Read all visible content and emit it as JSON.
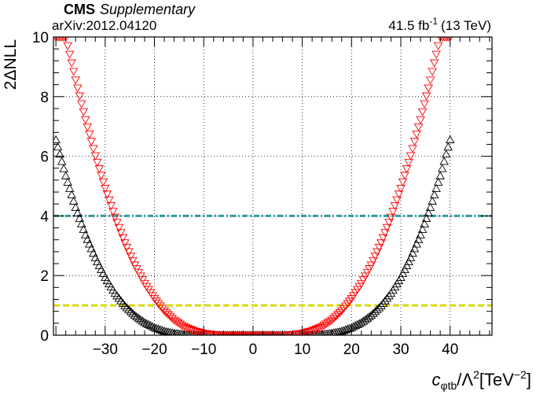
{
  "header": {
    "experiment": "CMS",
    "tag": "Supplementary",
    "arxiv": "arXiv:2012.04120",
    "lumi_value": "41.5 fb",
    "lumi_exp": "-1",
    "energy": "(13 TeV)"
  },
  "chart_data": {
    "type": "scatter",
    "ylabel": "2ΔNLL",
    "xlabel": {
      "base": "c",
      "sub": "φtb",
      "middle": "/Λ",
      "sup": "2",
      "unit_open": "[TeV",
      "unit_sup": "−2",
      "unit_close": "]"
    },
    "xlim": [
      -40.5,
      48.5
    ],
    "ylim": [
      0,
      10
    ],
    "xticks": [
      -30,
      -20,
      -10,
      0,
      10,
      20,
      30,
      40
    ],
    "xtick_labels": [
      "−30",
      "−20",
      "−10",
      "0",
      "10",
      "20",
      "30",
      "40"
    ],
    "yticks": [
      0,
      2,
      4,
      6,
      8,
      10
    ],
    "ytick_labels": [
      "0",
      "2",
      "4",
      "6",
      "8",
      "10"
    ],
    "grid": true,
    "reference_lines": [
      {
        "y": 4,
        "color": "#2f9c9c",
        "style": "dash-dot"
      },
      {
        "y": 1,
        "color": "#d9d900",
        "style": "dashed"
      }
    ],
    "series": [
      {
        "marker": "triangle-up-open",
        "color": "#000000",
        "x_range": [
          -40,
          40
        ],
        "x_step": 0.4,
        "x": [
          -40,
          -38,
          -36,
          -34,
          -32,
          -30,
          -28,
          -26,
          -24,
          -22,
          -20,
          -18,
          -16,
          -14,
          -12,
          -10,
          -8,
          -6,
          -4,
          -2,
          0,
          2,
          4,
          6,
          8,
          10,
          12,
          14,
          16,
          18,
          20,
          22,
          24,
          26,
          28,
          30,
          32,
          34,
          36,
          38,
          40
        ],
        "y": [
          6.55,
          5.34,
          4.28,
          3.36,
          2.59,
          1.93,
          1.4,
          0.98,
          0.66,
          0.42,
          0.25,
          0.13,
          0.06,
          0.02,
          0.005,
          0.0,
          0.0,
          0.0,
          0.0,
          0.0,
          0.0,
          0.0,
          0.0,
          0.0,
          0.0,
          0.0,
          0.005,
          0.02,
          0.06,
          0.13,
          0.25,
          0.42,
          0.66,
          0.98,
          1.4,
          1.93,
          2.59,
          3.36,
          4.28,
          5.34,
          6.55
        ]
      },
      {
        "marker": "triangle-down-open",
        "color": "#ff0000",
        "x_range": [
          -40,
          40
        ],
        "x_step": 0.4,
        "x": [
          -38,
          -36,
          -34,
          -32,
          -30,
          -28,
          -26,
          -24,
          -22,
          -20,
          -18,
          -16,
          -14,
          -12,
          -10,
          -8,
          -6,
          -4,
          -2,
          0,
          2,
          4,
          6,
          8,
          10,
          12,
          14,
          16,
          18,
          20,
          22,
          24,
          26,
          28,
          30,
          32,
          34,
          36,
          38
        ],
        "y": [
          10.0,
          8.56,
          7.23,
          6.02,
          4.93,
          3.96,
          3.1,
          2.36,
          1.74,
          1.23,
          0.82,
          0.51,
          0.29,
          0.15,
          0.065,
          0.02,
          0.004,
          0.0,
          0.0,
          0.0,
          0.0,
          0.0,
          0.004,
          0.02,
          0.065,
          0.15,
          0.29,
          0.51,
          0.82,
          1.23,
          1.74,
          2.36,
          3.1,
          3.96,
          4.93,
          6.02,
          7.23,
          8.56,
          10.0
        ]
      }
    ]
  }
}
